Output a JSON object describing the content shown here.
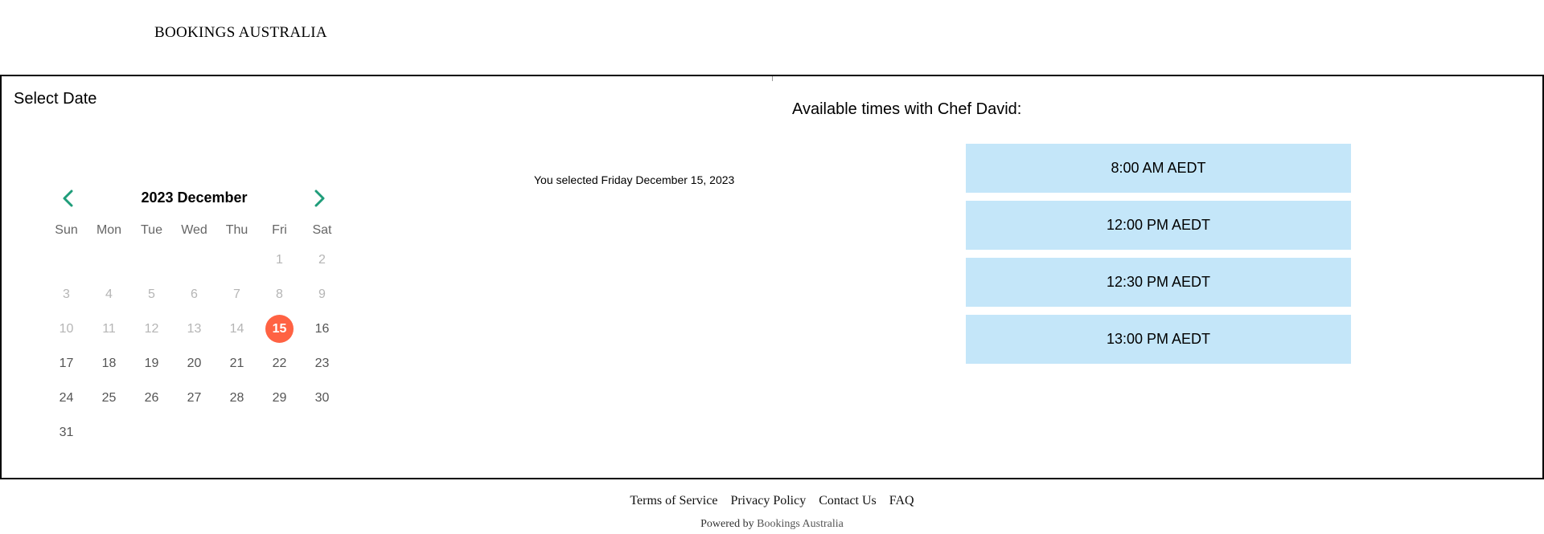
{
  "brand": "BOOKINGS AUSTRALIA",
  "colors": {
    "accent_green": "#1f9d7a",
    "selected_day": "#ff6243",
    "slot_bg": "#c4e6f9"
  },
  "date_panel": {
    "label": "Select Date",
    "calendar": {
      "title": "2023 December",
      "prev_icon": "chevron-left-icon",
      "next_icon": "chevron-right-icon",
      "weekdays": [
        "Sun",
        "Mon",
        "Tue",
        "Wed",
        "Thu",
        "Fri",
        "Sat"
      ],
      "leading_blanks": 5,
      "days": [
        {
          "n": "1",
          "state": "disabled"
        },
        {
          "n": "2",
          "state": "disabled"
        },
        {
          "n": "3",
          "state": "disabled"
        },
        {
          "n": "4",
          "state": "disabled"
        },
        {
          "n": "5",
          "state": "disabled"
        },
        {
          "n": "6",
          "state": "disabled"
        },
        {
          "n": "7",
          "state": "disabled"
        },
        {
          "n": "8",
          "state": "disabled"
        },
        {
          "n": "9",
          "state": "disabled"
        },
        {
          "n": "10",
          "state": "disabled"
        },
        {
          "n": "11",
          "state": "disabled"
        },
        {
          "n": "12",
          "state": "disabled"
        },
        {
          "n": "13",
          "state": "disabled"
        },
        {
          "n": "14",
          "state": "disabled"
        },
        {
          "n": "15",
          "state": "selected"
        },
        {
          "n": "16",
          "state": "available"
        },
        {
          "n": "17",
          "state": "available"
        },
        {
          "n": "18",
          "state": "available"
        },
        {
          "n": "19",
          "state": "available"
        },
        {
          "n": "20",
          "state": "available"
        },
        {
          "n": "21",
          "state": "available"
        },
        {
          "n": "22",
          "state": "available"
        },
        {
          "n": "23",
          "state": "available"
        },
        {
          "n": "24",
          "state": "available"
        },
        {
          "n": "25",
          "state": "available"
        },
        {
          "n": "26",
          "state": "available"
        },
        {
          "n": "27",
          "state": "available"
        },
        {
          "n": "28",
          "state": "available"
        },
        {
          "n": "29",
          "state": "available"
        },
        {
          "n": "30",
          "state": "available"
        },
        {
          "n": "31",
          "state": "available"
        }
      ]
    },
    "selected_text": "You selected Friday December 15, 2023"
  },
  "times_panel": {
    "heading": "Available times with Chef David:",
    "slots": [
      "8:00 AM AEDT",
      "12:00 PM AEDT",
      "12:30 PM AEDT",
      "13:00 PM AEDT"
    ]
  },
  "footer": {
    "links": [
      "Terms of Service",
      "Privacy Policy",
      "Contact Us",
      "FAQ"
    ],
    "powered_prefix": "Powered by",
    "powered_link": "Bookings Australia"
  }
}
